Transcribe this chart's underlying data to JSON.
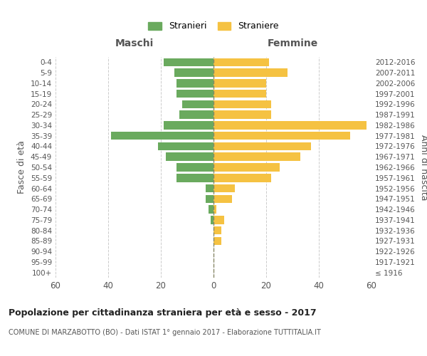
{
  "age_groups": [
    "100+",
    "95-99",
    "90-94",
    "85-89",
    "80-84",
    "75-79",
    "70-74",
    "65-69",
    "60-64",
    "55-59",
    "50-54",
    "45-49",
    "40-44",
    "35-39",
    "30-34",
    "25-29",
    "20-24",
    "15-19",
    "10-14",
    "5-9",
    "0-4"
  ],
  "birth_years": [
    "≤ 1916",
    "1917-1921",
    "1922-1926",
    "1927-1931",
    "1932-1936",
    "1937-1941",
    "1942-1946",
    "1947-1951",
    "1952-1956",
    "1957-1961",
    "1962-1966",
    "1967-1971",
    "1972-1976",
    "1977-1981",
    "1982-1986",
    "1987-1991",
    "1992-1996",
    "1997-2001",
    "2002-2006",
    "2007-2011",
    "2012-2016"
  ],
  "maschi": [
    0,
    0,
    0,
    0,
    0,
    1,
    2,
    3,
    3,
    14,
    14,
    18,
    21,
    39,
    19,
    13,
    12,
    14,
    14,
    15,
    19
  ],
  "femmine": [
    0,
    0,
    0,
    3,
    3,
    4,
    1,
    7,
    8,
    22,
    25,
    33,
    37,
    52,
    58,
    22,
    22,
    20,
    20,
    28,
    21
  ],
  "male_color": "#6aaa5e",
  "female_color": "#f5c242",
  "grid_color": "#cccccc",
  "center_line_color": "#888866",
  "title": "Popolazione per cittadinanza straniera per età e sesso - 2017",
  "subtitle": "COMUNE DI MARZABOTTO (BO) - Dati ISTAT 1° gennaio 2017 - Elaborazione TUTTITALIA.IT",
  "xlabel_left": "Maschi",
  "xlabel_right": "Femmine",
  "ylabel_left": "Fasce di età",
  "ylabel_right": "Anni di nascita",
  "legend_male": "Stranieri",
  "legend_female": "Straniere",
  "xlim": 60,
  "bg_color": "#ffffff"
}
